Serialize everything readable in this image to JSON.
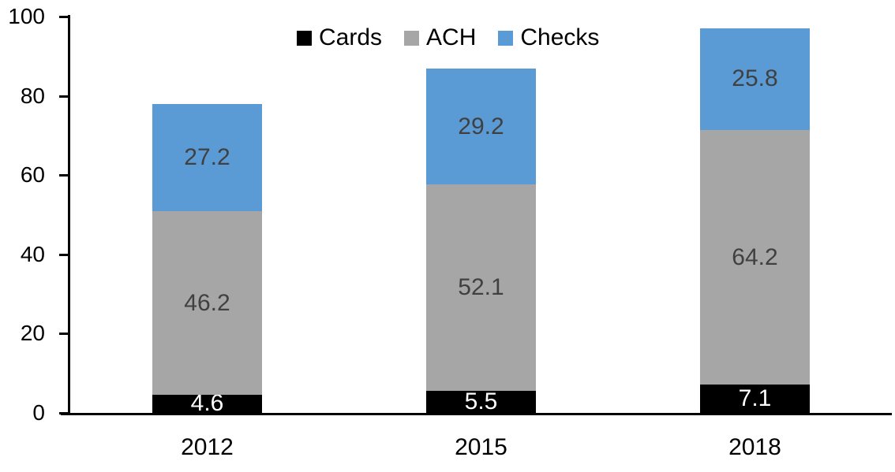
{
  "chart_data": {
    "type": "bar",
    "stacked": true,
    "title": "",
    "xlabel": "",
    "ylabel": "",
    "categories": [
      "2012",
      "2015",
      "2018"
    ],
    "series": [
      {
        "name": "Cards",
        "color": "#000000",
        "label_color": "#ffffff",
        "values": [
          4.6,
          5.5,
          7.1
        ]
      },
      {
        "name": "ACH",
        "color": "#a6a6a6",
        "label_color": "#404040",
        "values": [
          46.2,
          52.1,
          64.2
        ]
      },
      {
        "name": "Checks",
        "color": "#5b9bd5",
        "label_color": "#404040",
        "values": [
          27.2,
          29.2,
          25.8
        ]
      }
    ],
    "totals": [
      78.0,
      86.8,
      97.1
    ],
    "ylim": [
      0,
      100
    ],
    "yticks": [
      0,
      20,
      40,
      60,
      80,
      100
    ],
    "grid": false,
    "legend_position": "top-center",
    "legend_entries": [
      "Cards",
      "ACH",
      "Checks"
    ],
    "axis_color": "#000000",
    "tick_label_color": "#000000"
  }
}
